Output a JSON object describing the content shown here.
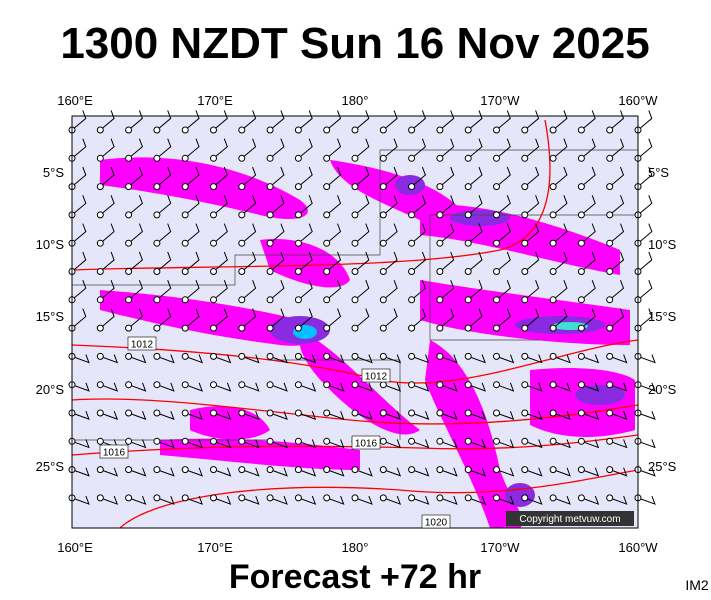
{
  "title": "1300 NZDT Sun 16 Nov 2025",
  "lon_labels": [
    "160°E",
    "170°E",
    "180°",
    "170°W",
    "160°W"
  ],
  "lat_labels": [
    "5°S",
    "10°S",
    "15°S",
    "20°S",
    "25°S"
  ],
  "isobar_labels": [
    "1012",
    "1012",
    "1016",
    "1016",
    "1020"
  ],
  "copyright": "Copyright metvuw.com",
  "footer": "Forecast +72 hr",
  "corner_label": "IM2"
}
